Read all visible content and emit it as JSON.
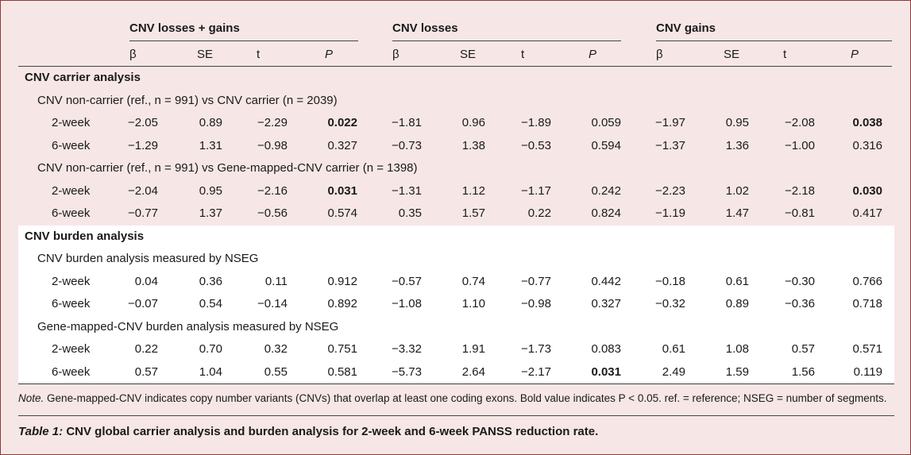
{
  "table": {
    "group_headers": [
      "CNV losses + gains",
      "CNV losses",
      "CNV gains"
    ],
    "column_headers": [
      "β",
      "SE",
      "t",
      "P",
      "β",
      "SE",
      "t",
      "P",
      "β",
      "SE",
      "t",
      "P"
    ],
    "sections": [
      {
        "title": "CNV carrier analysis",
        "subsections": [
          {
            "title": "CNV non-carrier (ref., n = 991) vs CNV carrier (n = 2039)",
            "rows": [
              {
                "label": "2-week",
                "values": [
                  "−2.05",
                  "0.89",
                  "−2.29",
                  "0.022",
                  "−1.81",
                  "0.96",
                  "−1.89",
                  "0.059",
                  "−1.97",
                  "0.95",
                  "−2.08",
                  "0.038"
                ],
                "bold": [
                  3,
                  11
                ]
              },
              {
                "label": "6-week",
                "values": [
                  "−1.29",
                  "1.31",
                  "−0.98",
                  "0.327",
                  "−0.73",
                  "1.38",
                  "−0.53",
                  "0.594",
                  "−1.37",
                  "1.36",
                  "−1.00",
                  "0.316"
                ],
                "bold": []
              }
            ]
          },
          {
            "title": "CNV non-carrier (ref., n = 991) vs Gene-mapped-CNV carrier (n = 1398)",
            "rows": [
              {
                "label": "2-week",
                "values": [
                  "−2.04",
                  "0.95",
                  "−2.16",
                  "0.031",
                  "−1.31",
                  "1.12",
                  "−1.17",
                  "0.242",
                  "−2.23",
                  "1.02",
                  "−2.18",
                  "0.030"
                ],
                "bold": [
                  3,
                  11
                ]
              },
              {
                "label": "6-week",
                "values": [
                  "−0.77",
                  "1.37",
                  "−0.56",
                  "0.574",
                  "0.35",
                  "1.57",
                  "0.22",
                  "0.824",
                  "−1.19",
                  "1.47",
                  "−0.81",
                  "0.417"
                ],
                "bold": []
              }
            ]
          }
        ]
      },
      {
        "title": "CNV burden analysis",
        "subsections": [
          {
            "title": "CNV burden analysis measured by NSEG",
            "rows": [
              {
                "label": "2-week",
                "values": [
                  "0.04",
                  "0.36",
                  "0.11",
                  "0.912",
                  "−0.57",
                  "0.74",
                  "−0.77",
                  "0.442",
                  "−0.18",
                  "0.61",
                  "−0.30",
                  "0.766"
                ],
                "bold": []
              },
              {
                "label": "6-week",
                "values": [
                  "−0.07",
                  "0.54",
                  "−0.14",
                  "0.892",
                  "−1.08",
                  "1.10",
                  "−0.98",
                  "0.327",
                  "−0.32",
                  "0.89",
                  "−0.36",
                  "0.718"
                ],
                "bold": []
              }
            ]
          },
          {
            "title": "Gene-mapped-CNV burden analysis measured by NSEG",
            "rows": [
              {
                "label": "2-week",
                "values": [
                  "0.22",
                  "0.70",
                  "0.32",
                  "0.751",
                  "−3.32",
                  "1.91",
                  "−1.73",
                  "0.083",
                  "0.61",
                  "1.08",
                  "0.57",
                  "0.571"
                ],
                "bold": []
              },
              {
                "label": "6-week",
                "values": [
                  "0.57",
                  "1.04",
                  "0.55",
                  "0.581",
                  "−5.73",
                  "2.64",
                  "−2.17",
                  "0.031",
                  "2.49",
                  "1.59",
                  "1.56",
                  "0.119"
                ],
                "bold": [
                  7
                ]
              }
            ]
          }
        ]
      }
    ]
  },
  "note": {
    "label": "Note.",
    "text": "Gene-mapped-CNV indicates copy number variants (CNVs) that overlap at least one coding exons. Bold value indicates P < 0.05. ref. = reference; NSEG = number of segments."
  },
  "caption": {
    "label": "Table 1:",
    "text": "CNV global carrier analysis and burden analysis for 2-week and 6-week PANSS reduction rate."
  }
}
